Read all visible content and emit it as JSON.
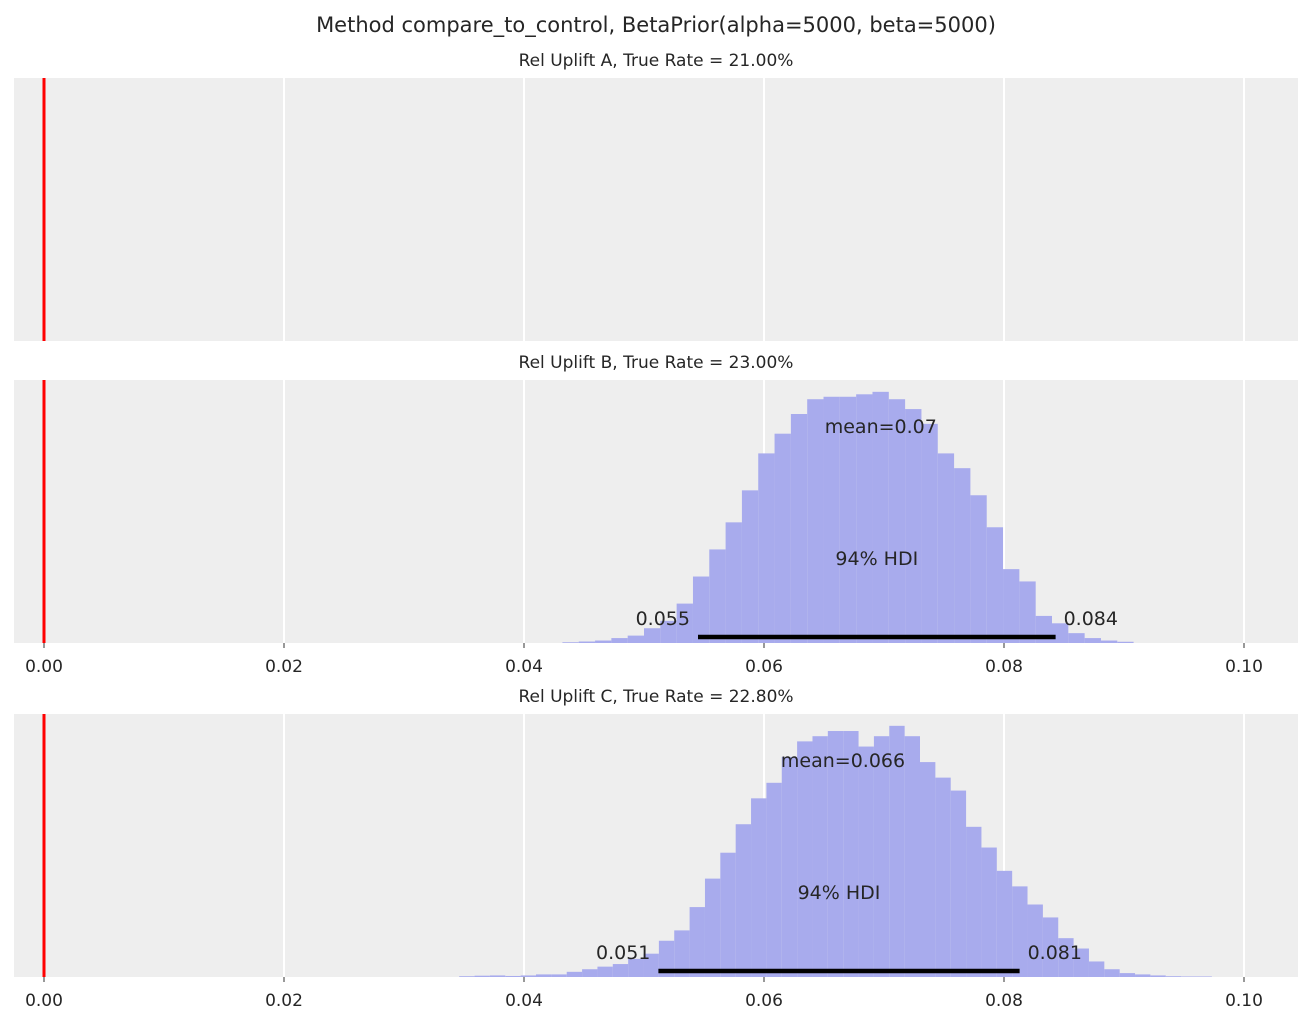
{
  "figure": {
    "title": "Method compare_to_control, BetaPrior(alpha=5000, beta=5000)"
  },
  "colors": {
    "panel_bg": "#eeeeee",
    "grid": "#ffffff",
    "histogram": "#a8abed",
    "reference_line": "#ff0000",
    "hdi_bar": "#000000",
    "text": "#262626"
  },
  "chart_data": [
    {
      "type": "bar",
      "title": "Rel Uplift A, True Rate = 21.00%",
      "xlim": [
        -0.0025,
        0.1045
      ],
      "xticks": [
        "0.00",
        "0.02",
        "0.04",
        "0.06",
        "0.08",
        "0.10"
      ],
      "show_xtick_labels": false,
      "reference_x": 0.0,
      "grid": true,
      "bins": []
    },
    {
      "type": "bar",
      "title": "Rel Uplift B, True Rate = 23.00%",
      "xlim": [
        -0.0025,
        0.1045
      ],
      "xticks": [
        "0.00",
        "0.02",
        "0.04",
        "0.06",
        "0.08",
        "0.10"
      ],
      "show_xtick_labels": true,
      "reference_x": 0.0,
      "grid": true,
      "bin_start": 0.0432,
      "bin_width": 0.00136,
      "counts": [
        0.3,
        0.6,
        1,
        2,
        3,
        6,
        9,
        16,
        27,
        38,
        49,
        62,
        77,
        85,
        93,
        99,
        100,
        100,
        101,
        102,
        99,
        95,
        89,
        77,
        71,
        60,
        47,
        30,
        25,
        11,
        8,
        4,
        2,
        1,
        0.5
      ],
      "mean_label": "mean=0.07",
      "hdi_label": "94% HDI",
      "hdi": [
        0.0545,
        0.0843
      ],
      "hdi_low_label": "0.055",
      "hdi_high_label": "0.084"
    },
    {
      "type": "bar",
      "title": "Rel Uplift C, True Rate = 22.80%",
      "xlim": [
        -0.0025,
        0.1045
      ],
      "xticks": [
        "0.00",
        "0.02",
        "0.04",
        "0.06",
        "0.08",
        "0.10"
      ],
      "show_xtick_labels": true,
      "reference_x": 0.0,
      "grid": true,
      "bin_start": 0.0346,
      "bin_width": 0.00128,
      "counts": [
        0.3,
        0.5,
        0.6,
        0.4,
        0.6,
        1,
        1,
        2,
        3,
        4,
        5,
        7,
        9,
        14,
        18,
        27,
        38,
        48,
        59,
        69,
        75,
        85,
        91,
        93,
        95,
        95,
        89,
        93,
        97,
        93,
        83,
        77,
        72,
        58,
        50,
        41,
        35,
        28,
        23,
        15,
        11,
        6,
        3,
        1.5,
        1,
        0.6,
        0.3,
        0.2,
        0.2
      ],
      "mean_label": "mean=0.066",
      "hdi_label": "94% HDI",
      "hdi": [
        0.0512,
        0.0813
      ],
      "hdi_low_label": "0.051",
      "hdi_high_label": "0.081"
    }
  ]
}
